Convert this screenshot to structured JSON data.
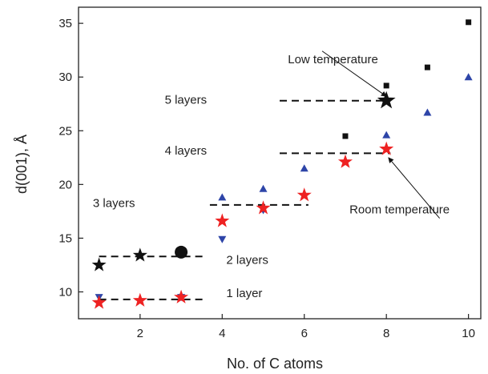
{
  "chart_data": {
    "type": "scatter",
    "title": "",
    "xlabel": "No. of C atoms",
    "ylabel": "d(001), Å",
    "xlim": [
      0.5,
      10.3
    ],
    "ylim": [
      7.5,
      36.5
    ],
    "xticks": [
      2,
      4,
      6,
      8,
      10
    ],
    "yticks": [
      10,
      15,
      20,
      25,
      30,
      35
    ],
    "grid": false,
    "legend": "none",
    "series": [
      {
        "marker": "square",
        "color": "#111111",
        "points": [
          [
            7,
            24.5
          ],
          [
            8,
            29.2
          ],
          [
            9,
            30.9
          ],
          [
            10,
            35.1
          ]
        ]
      },
      {
        "marker": "triangle-up",
        "color": "#2e45a8",
        "points": [
          [
            4,
            18.8
          ],
          [
            5,
            19.6
          ],
          [
            6,
            21.5
          ],
          [
            8,
            24.6
          ],
          [
            9,
            26.7
          ],
          [
            10,
            30.0
          ]
        ]
      },
      {
        "marker": "triangle-down",
        "color": "#2e45a8",
        "points": [
          [
            1,
            9.5
          ],
          [
            3,
            9.5
          ],
          [
            4,
            14.9
          ],
          [
            5,
            17.6
          ]
        ]
      },
      {
        "marker": "star",
        "color": "#ee2222",
        "points": [
          [
            1,
            9.0
          ],
          [
            2,
            9.2
          ],
          [
            3,
            9.5
          ],
          [
            4,
            16.6
          ],
          [
            5,
            17.8
          ],
          [
            6,
            19.0
          ],
          [
            7,
            22.1
          ],
          [
            8,
            23.3
          ]
        ]
      },
      {
        "marker": "star",
        "color": "#111111",
        "points": [
          [
            1,
            12.5
          ],
          [
            2,
            13.4
          ],
          [
            8,
            27.8
          ]
        ]
      },
      {
        "marker": "circle",
        "color": "#111111",
        "points": [
          [
            3,
            13.7
          ]
        ]
      }
    ],
    "reference_lines": [
      {
        "x": [
          1,
          3.6
        ],
        "y": 9.3
      },
      {
        "x": [
          1,
          3.6
        ],
        "y": 13.3
      },
      {
        "x": [
          3.7,
          6.1
        ],
        "y": 18.1
      },
      {
        "x": [
          5.4,
          8.1
        ],
        "y": 22.9
      },
      {
        "x": [
          5.4,
          8.1
        ],
        "y": 27.8
      }
    ],
    "annotations": [
      {
        "text": "1 layer",
        "x": 4.1,
        "y": 9.5
      },
      {
        "text": "2 layers",
        "x": 4.1,
        "y": 12.6
      },
      {
        "text": "3 layers",
        "x": 0.85,
        "y": 17.9
      },
      {
        "text": "4 layers",
        "x": 2.6,
        "y": 22.8
      },
      {
        "text": "5 layers",
        "x": 2.6,
        "y": 27.5
      },
      {
        "text": "Low temperature",
        "x": 5.6,
        "y": 31.3,
        "arrow_to": [
          8,
          28.2
        ]
      },
      {
        "text": "Room temperature",
        "x": 7.1,
        "y": 17.3,
        "arrow_to": [
          8.05,
          22.5
        ]
      }
    ]
  }
}
